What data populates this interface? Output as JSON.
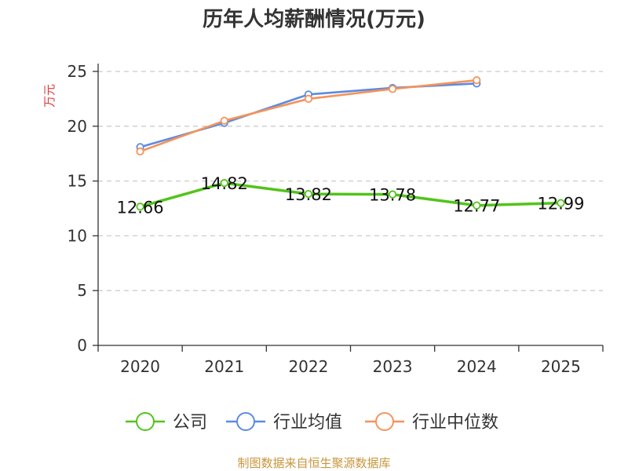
{
  "chart_data": {
    "type": "line",
    "title": "历年人均薪酬情况(万元)",
    "ylabel": "万元",
    "categories": [
      "2020",
      "2021",
      "2022",
      "2023",
      "2024",
      "2025"
    ],
    "ylim": [
      0,
      25
    ],
    "yticks": [
      0,
      5,
      10,
      15,
      20,
      25
    ],
    "grid": true,
    "legend_position": "bottom",
    "series": [
      {
        "name": "公司",
        "color": "#52c41a",
        "values": [
          12.66,
          14.82,
          13.82,
          13.78,
          12.77,
          12.99
        ],
        "labels": [
          "12.66",
          "14.82",
          "13.82",
          "13.78",
          "12.77",
          "12.99"
        ]
      },
      {
        "name": "行业均值",
        "color": "#5b8be0",
        "values": [
          18.1,
          20.3,
          22.9,
          23.5,
          23.9,
          null
        ]
      },
      {
        "name": "行业中位数",
        "color": "#f5935a",
        "values": [
          17.7,
          20.5,
          22.5,
          23.4,
          24.2,
          null
        ]
      }
    ]
  },
  "source": "制图数据来自恒生聚源数据库"
}
